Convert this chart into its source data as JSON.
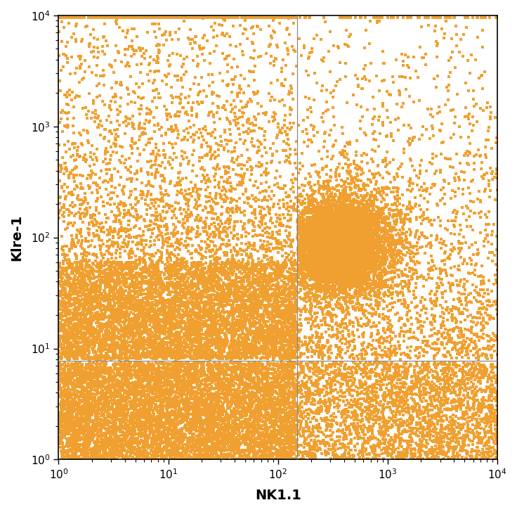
{
  "xlabel": "NK1.1",
  "ylabel": "Klre-1",
  "dot_color": "#F0A030",
  "background_color": "#FFFFFF",
  "xlim": [
    1,
    10000
  ],
  "ylim": [
    1,
    10000
  ],
  "vline_x": 150,
  "hline_y": 7.8,
  "seed": 42,
  "xlabel_fontsize": 14,
  "ylabel_fontsize": 14,
  "tick_fontsize": 11,
  "dot_size": 6.0,
  "dot_alpha": 1.0,
  "marker": "s"
}
